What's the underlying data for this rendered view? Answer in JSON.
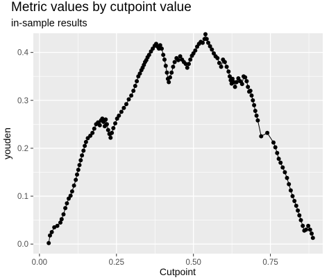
{
  "chart_data": {
    "type": "line",
    "title": "Metric values by cutpoint value",
    "subtitle": "in-sample results",
    "xlabel": "Cutpoint",
    "ylabel": "youden",
    "xlim": [
      -0.02,
      0.92
    ],
    "ylim": [
      -0.02,
      0.44
    ],
    "x_ticks": [
      0.0,
      0.25,
      0.5,
      0.75
    ],
    "x_tick_labels": [
      "0.00",
      "0.25",
      "0.50",
      "0.75"
    ],
    "y_ticks": [
      0.0,
      0.1,
      0.2,
      0.3,
      0.4
    ],
    "y_tick_labels": [
      "0.0",
      "0.1",
      "0.2",
      "0.3",
      "0.4"
    ],
    "grid": true,
    "markers": true,
    "colors": {
      "panel": "#ebebeb",
      "grid": "#ffffff",
      "series": "#000000"
    },
    "series": [
      {
        "points": [
          [
            0.03,
            0.002
          ],
          [
            0.034,
            0.018
          ],
          [
            0.04,
            0.025
          ],
          [
            0.048,
            0.035
          ],
          [
            0.058,
            0.038
          ],
          [
            0.068,
            0.045
          ],
          [
            0.072,
            0.052
          ],
          [
            0.078,
            0.062
          ],
          [
            0.084,
            0.075
          ],
          [
            0.089,
            0.085
          ],
          [
            0.095,
            0.095
          ],
          [
            0.101,
            0.101
          ],
          [
            0.106,
            0.11
          ],
          [
            0.112,
            0.122
          ],
          [
            0.118,
            0.134
          ],
          [
            0.122,
            0.145
          ],
          [
            0.126,
            0.155
          ],
          [
            0.13,
            0.165
          ],
          [
            0.134,
            0.175
          ],
          [
            0.138,
            0.185
          ],
          [
            0.143,
            0.195
          ],
          [
            0.147,
            0.205
          ],
          [
            0.151,
            0.213
          ],
          [
            0.157,
            0.221
          ],
          [
            0.165,
            0.226
          ],
          [
            0.172,
            0.232
          ],
          [
            0.178,
            0.241
          ],
          [
            0.184,
            0.25
          ],
          [
            0.19,
            0.254
          ],
          [
            0.196,
            0.248
          ],
          [
            0.2,
            0.258
          ],
          [
            0.204,
            0.262
          ],
          [
            0.208,
            0.255
          ],
          [
            0.212,
            0.246
          ],
          [
            0.215,
            0.26
          ],
          [
            0.219,
            0.25
          ],
          [
            0.223,
            0.238
          ],
          [
            0.227,
            0.23
          ],
          [
            0.231,
            0.222
          ],
          [
            0.235,
            0.232
          ],
          [
            0.24,
            0.242
          ],
          [
            0.246,
            0.252
          ],
          [
            0.252,
            0.262
          ],
          [
            0.258,
            0.268
          ],
          [
            0.266,
            0.276
          ],
          [
            0.274,
            0.284
          ],
          [
            0.282,
            0.292
          ],
          [
            0.29,
            0.302
          ],
          [
            0.298,
            0.31
          ],
          [
            0.305,
            0.32
          ],
          [
            0.311,
            0.33
          ],
          [
            0.316,
            0.34
          ],
          [
            0.321,
            0.35
          ],
          [
            0.326,
            0.356
          ],
          [
            0.331,
            0.363
          ],
          [
            0.335,
            0.368
          ],
          [
            0.339,
            0.374
          ],
          [
            0.343,
            0.38
          ],
          [
            0.347,
            0.384
          ],
          [
            0.351,
            0.39
          ],
          [
            0.356,
            0.395
          ],
          [
            0.362,
            0.402
          ],
          [
            0.368,
            0.408
          ],
          [
            0.374,
            0.414
          ],
          [
            0.379,
            0.418
          ],
          [
            0.384,
            0.412
          ],
          [
            0.388,
            0.408
          ],
          [
            0.392,
            0.415
          ],
          [
            0.397,
            0.408
          ],
          [
            0.402,
            0.395
          ],
          [
            0.406,
            0.385
          ],
          [
            0.41,
            0.372
          ],
          [
            0.414,
            0.358
          ],
          [
            0.417,
            0.345
          ],
          [
            0.42,
            0.338
          ],
          [
            0.424,
            0.348
          ],
          [
            0.429,
            0.358
          ],
          [
            0.434,
            0.37
          ],
          [
            0.439,
            0.38
          ],
          [
            0.445,
            0.388
          ],
          [
            0.451,
            0.384
          ],
          [
            0.457,
            0.392
          ],
          [
            0.463,
            0.385
          ],
          [
            0.469,
            0.38
          ],
          [
            0.475,
            0.376
          ],
          [
            0.48,
            0.368
          ],
          [
            0.485,
            0.376
          ],
          [
            0.49,
            0.385
          ],
          [
            0.495,
            0.393
          ],
          [
            0.5,
            0.398
          ],
          [
            0.506,
            0.404
          ],
          [
            0.512,
            0.412
          ],
          [
            0.518,
            0.418
          ],
          [
            0.524,
            0.422
          ],
          [
            0.53,
            0.42
          ],
          [
            0.536,
            0.428
          ],
          [
            0.539,
            0.438
          ],
          [
            0.543,
            0.428
          ],
          [
            0.548,
            0.42
          ],
          [
            0.554,
            0.413
          ],
          [
            0.56,
            0.406
          ],
          [
            0.566,
            0.398
          ],
          [
            0.572,
            0.392
          ],
          [
            0.578,
            0.388
          ],
          [
            0.584,
            0.378
          ],
          [
            0.59,
            0.37
          ],
          [
            0.596,
            0.385
          ],
          [
            0.602,
            0.38
          ],
          [
            0.608,
            0.37
          ],
          [
            0.614,
            0.36
          ],
          [
            0.618,
            0.35
          ],
          [
            0.621,
            0.342
          ],
          [
            0.624,
            0.335
          ],
          [
            0.627,
            0.345
          ],
          [
            0.631,
            0.338
          ],
          [
            0.635,
            0.328
          ],
          [
            0.64,
            0.338
          ],
          [
            0.646,
            0.346
          ],
          [
            0.652,
            0.34
          ],
          [
            0.658,
            0.334
          ],
          [
            0.663,
            0.35
          ],
          [
            0.668,
            0.348
          ],
          [
            0.673,
            0.34
          ],
          [
            0.677,
            0.328
          ],
          [
            0.681,
            0.318
          ],
          [
            0.685,
            0.32
          ],
          [
            0.689,
            0.31
          ],
          [
            0.693,
            0.3
          ],
          [
            0.697,
            0.29
          ],
          [
            0.701,
            0.278
          ],
          [
            0.705,
            0.268
          ],
          [
            0.709,
            0.258
          ],
          [
            0.72,
            0.225
          ],
          [
            0.74,
            0.232
          ],
          [
            0.76,
            0.212
          ],
          [
            0.766,
            0.202
          ],
          [
            0.772,
            0.19
          ],
          [
            0.777,
            0.178
          ],
          [
            0.783,
            0.17
          ],
          [
            0.79,
            0.16
          ],
          [
            0.797,
            0.15
          ],
          [
            0.804,
            0.138
          ],
          [
            0.81,
            0.125
          ],
          [
            0.816,
            0.112
          ],
          [
            0.822,
            0.1
          ],
          [
            0.828,
            0.09
          ],
          [
            0.834,
            0.08
          ],
          [
            0.839,
            0.07
          ],
          [
            0.844,
            0.06
          ],
          [
            0.849,
            0.05
          ],
          [
            0.855,
            0.038
          ],
          [
            0.86,
            0.028
          ],
          [
            0.866,
            0.03
          ],
          [
            0.873,
            0.038
          ],
          [
            0.879,
            0.03
          ],
          [
            0.884,
            0.022
          ],
          [
            0.888,
            0.013
          ]
        ]
      }
    ]
  }
}
